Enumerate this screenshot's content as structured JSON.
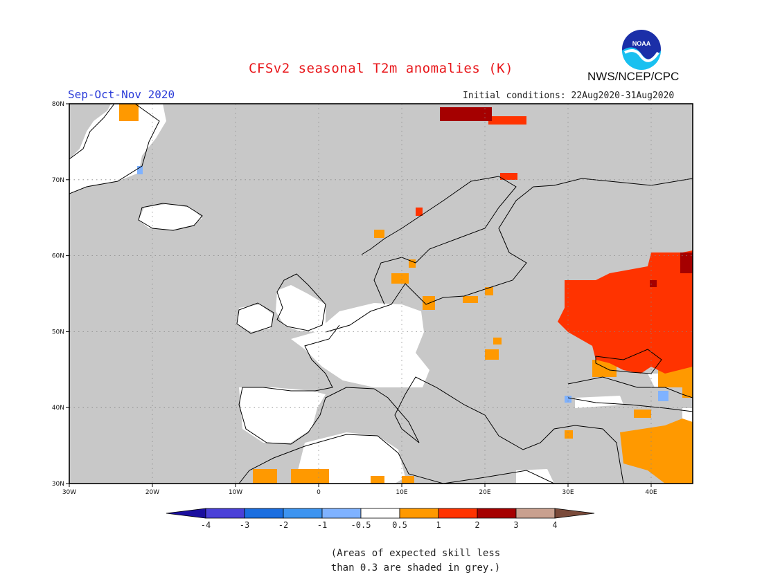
{
  "header": {
    "title": "CFSv2 seasonal T2m anomalies (K)",
    "season": "Sep-Oct-Nov 2020",
    "initial_conditions": "Initial conditions: 22Aug2020-31Aug2020",
    "agency": "NWS/NCEP/CPC",
    "logo_text": "NOAA"
  },
  "map": {
    "region": "Europe",
    "lon_range": [
      -30,
      45
    ],
    "lat_range": [
      30,
      80
    ],
    "lat_ticks": [
      "30N",
      "40N",
      "50N",
      "60N",
      "70N",
      "80N"
    ],
    "lon_ticks": [
      "30W",
      "20W",
      "10W",
      "0",
      "10E",
      "20E",
      "30E",
      "40E"
    ],
    "background_color": "#c8c8c8",
    "anomaly_colors": {
      "white": "#ffffff",
      "orange_0.5_1": "#ff9900",
      "red_1_2": "#ff3300",
      "darkred_2_3": "#a50000",
      "blue_-1_-0.5": "#7fb2ff"
    }
  },
  "legend": {
    "labels": [
      "-4",
      "-3",
      "-2",
      "-1",
      "-0.5",
      "0.5",
      "1",
      "2",
      "3",
      "4"
    ],
    "colors": [
      "#1a0e9e",
      "#4a40d8",
      "#1a6ee0",
      "#3d94f0",
      "#7fb2ff",
      "#ffffff",
      "#ff9900",
      "#ff3300",
      "#a50000",
      "#c9a08f",
      "#7a4a3a"
    ],
    "note_line1": "(Areas of expected skill less",
    "note_line2": "than 0.3 are shaded in grey.)"
  }
}
